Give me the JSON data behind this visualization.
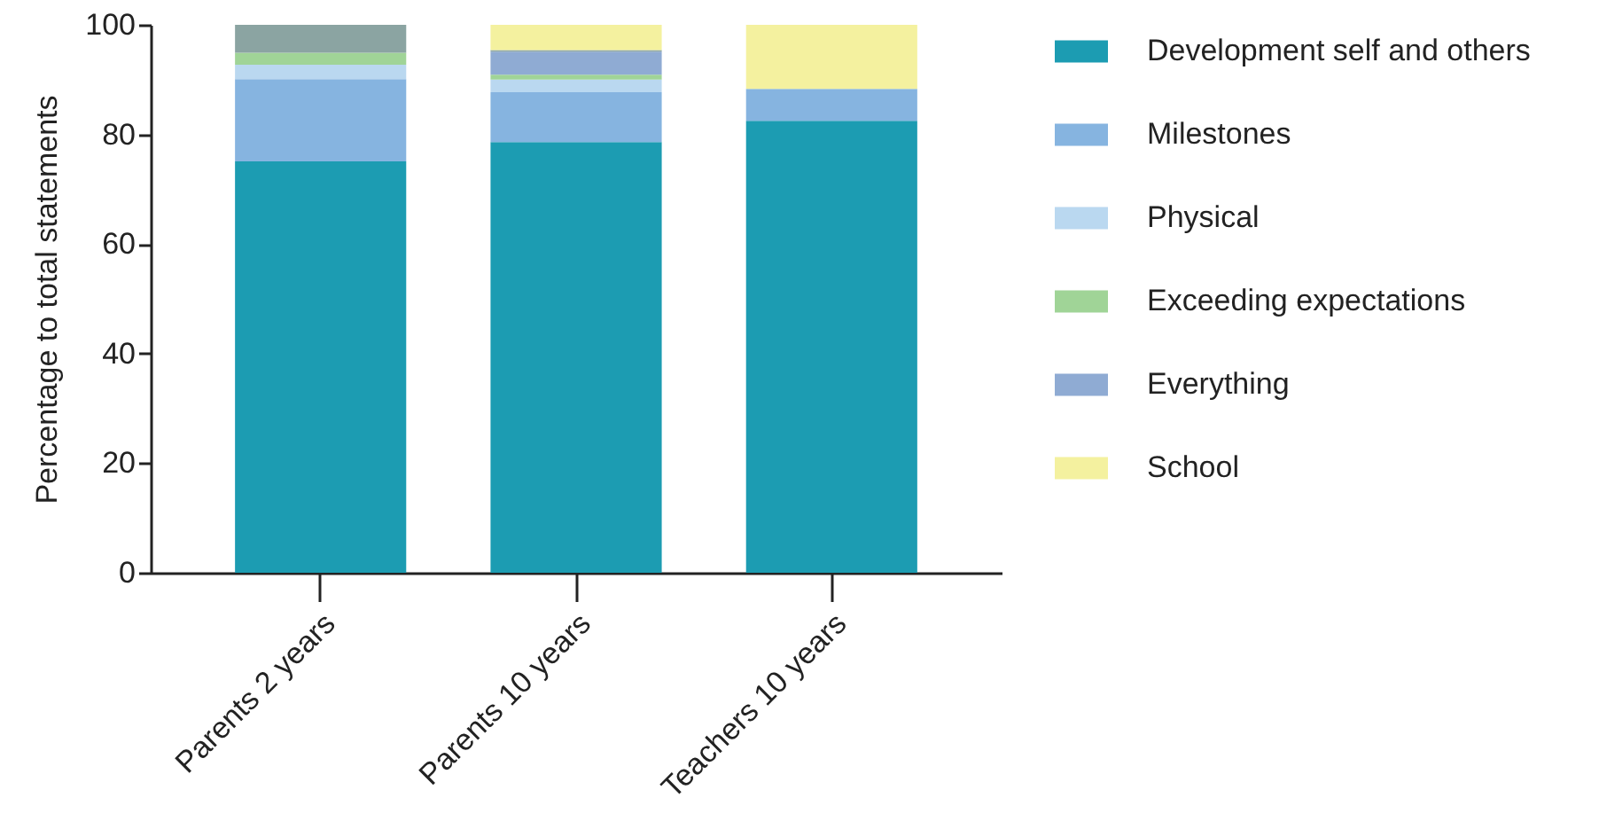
{
  "chart_data": {
    "type": "bar",
    "stacked": true,
    "ylabel": "Percentage to total statements",
    "categories": [
      "Parents 2 years",
      "Parents 10 years",
      "Teachers 10 years"
    ],
    "ylim": [
      0,
      100
    ],
    "yticks": [
      0,
      20,
      40,
      60,
      80,
      100
    ],
    "grid": false,
    "legend": "right",
    "series": [
      {
        "name": "Development self and others",
        "color": "#1c9cb2",
        "values": [
          75.1,
          78.6,
          82.5
        ]
      },
      {
        "name": "Milestones",
        "color": "#86b4e0",
        "values": [
          15,
          9.1,
          5.8
        ]
      },
      {
        "name": "Physical",
        "color": "#bad8f0",
        "values": [
          2.6,
          2.3,
          0
        ]
      },
      {
        "name": "Exceeding expectations",
        "color": "#a0d497",
        "values": [
          2.2,
          0.9,
          0
        ]
      },
      {
        "name": "Everything",
        "color": "#8fabd3",
        "values": [
          0,
          4.2,
          0
        ]
      },
      {
        "color": "#8ba4a2",
        "values": [
          5.1,
          0.3,
          0
        ]
      },
      {
        "name": "School",
        "color": "#f4f19f",
        "values": [
          0,
          4.6,
          11.7
        ]
      }
    ]
  }
}
